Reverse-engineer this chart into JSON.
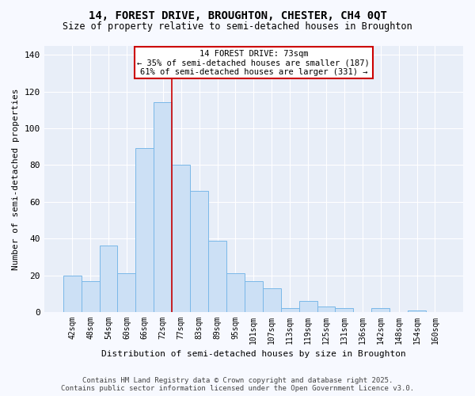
{
  "title1": "14, FOREST DRIVE, BROUGHTON, CHESTER, CH4 0QT",
  "title2": "Size of property relative to semi-detached houses in Broughton",
  "xlabel": "Distribution of semi-detached houses by size in Broughton",
  "ylabel": "Number of semi-detached properties",
  "categories": [
    "42sqm",
    "48sqm",
    "54sqm",
    "60sqm",
    "66sqm",
    "72sqm",
    "77sqm",
    "83sqm",
    "89sqm",
    "95sqm",
    "101sqm",
    "107sqm",
    "113sqm",
    "119sqm",
    "125sqm",
    "131sqm",
    "136sqm",
    "142sqm",
    "148sqm",
    "154sqm",
    "160sqm"
  ],
  "values": [
    20,
    17,
    36,
    21,
    89,
    114,
    80,
    66,
    39,
    21,
    17,
    13,
    2,
    6,
    3,
    2,
    0,
    2,
    0,
    1,
    0
  ],
  "bar_color": "#cce0f5",
  "bar_edge_color": "#7ab8e8",
  "marker_line_index": 5,
  "marker_label": "14 FOREST DRIVE: 73sqm",
  "marker_pct_smaller": "35% of semi-detached houses are smaller (187)",
  "marker_pct_larger": "61% of semi-detached houses are larger (331)",
  "marker_color": "#cc0000",
  "annotation_box_facecolor": "#ffffff",
  "annotation_box_edgecolor": "#cc0000",
  "ylim": [
    0,
    145
  ],
  "yticks": [
    0,
    20,
    40,
    60,
    80,
    100,
    120,
    140
  ],
  "footer1": "Contains HM Land Registry data © Crown copyright and database right 2025.",
  "footer2": "Contains public sector information licensed under the Open Government Licence v3.0.",
  "fig_facecolor": "#f7f9ff",
  "plot_facecolor": "#e8eef8",
  "grid_color": "#ffffff",
  "title1_fontsize": 10,
  "title2_fontsize": 8.5,
  "tick_fontsize": 7,
  "ylabel_fontsize": 8,
  "xlabel_fontsize": 8,
  "footer_fontsize": 6.5,
  "annot_fontsize": 7.5
}
